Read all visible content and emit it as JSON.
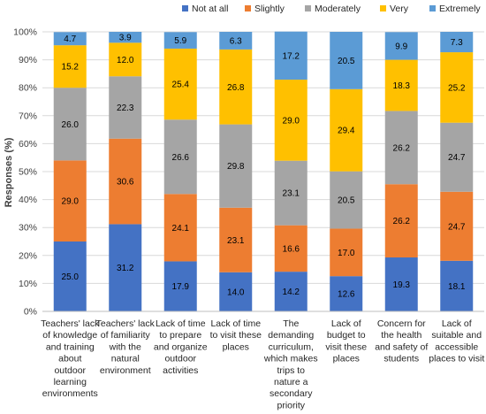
{
  "chart_data": {
    "type": "bar",
    "stacked": true,
    "categories": [
      [
        "Teachers' lack",
        "of knowledge",
        "and training",
        "about",
        "outdoor",
        "learning",
        "environments"
      ],
      [
        "Teachers' lack",
        "of familiarity",
        "with the",
        "natural",
        "environment"
      ],
      [
        "Lack of time",
        "to prepare",
        "and organize",
        "outdoor",
        "activities"
      ],
      [
        "Lack of time",
        "to visit these",
        "places"
      ],
      [
        "The",
        "demanding",
        "curriculum,",
        "which makes",
        "trips to",
        "nature a",
        "secondary",
        "priority"
      ],
      [
        "Lack of",
        "budget to",
        "visit these",
        "places"
      ],
      [
        "Concern for",
        "the health",
        "and safety of",
        "students"
      ],
      [
        "Lack of",
        "suitable and",
        "accessible",
        "places to visit"
      ]
    ],
    "series": [
      {
        "name": "Not at all",
        "color": "#4472C4",
        "values": [
          25.0,
          31.2,
          17.9,
          14.0,
          14.2,
          12.6,
          19.3,
          18.1
        ]
      },
      {
        "name": "Slightly",
        "color": "#ED7D31",
        "values": [
          29.0,
          30.6,
          24.1,
          23.1,
          16.6,
          17.0,
          26.2,
          24.7
        ]
      },
      {
        "name": "Moderately",
        "color": "#A5A5A5",
        "values": [
          26.0,
          22.3,
          26.6,
          29.8,
          23.1,
          20.5,
          26.2,
          24.7
        ]
      },
      {
        "name": "Very",
        "color": "#FFC000",
        "values": [
          15.2,
          12.0,
          25.4,
          26.8,
          29.0,
          29.4,
          18.3,
          25.2
        ]
      },
      {
        "name": "Extremely",
        "color": "#5B9BD5",
        "values": [
          4.7,
          3.9,
          5.9,
          6.3,
          17.2,
          20.5,
          9.9,
          7.3
        ]
      }
    ],
    "ylabel": "Responses (%)",
    "yticks": [
      "0%",
      "10%",
      "20%",
      "30%",
      "40%",
      "50%",
      "60%",
      "70%",
      "80%",
      "90%",
      "100%"
    ],
    "ylim": [
      0,
      100
    ],
    "legend_position": "top",
    "grid": true
  }
}
